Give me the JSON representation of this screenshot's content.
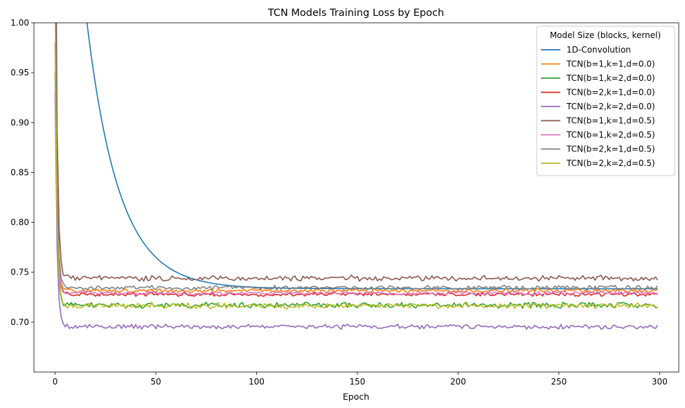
{
  "chart_data": {
    "type": "line",
    "title": "TCN Models Training Loss by Epoch",
    "xlabel": "Epoch",
    "ylabel": "",
    "xlim": [
      -10.5,
      309.5
    ],
    "ylim": [
      0.65,
      1.0
    ],
    "xticks": [
      0,
      50,
      100,
      150,
      200,
      250,
      300
    ],
    "yticks": [
      0.7,
      0.75,
      0.8,
      0.85,
      0.9,
      0.95,
      1.0
    ],
    "grid": false,
    "legend": {
      "title": "Model Size (blocks, kernel)",
      "placement": "top-right"
    },
    "epochs": 300,
    "series": [
      {
        "name": "1D-Convolution",
        "color": "#1f77b4",
        "start": 1.45,
        "plateau": 0.7335,
        "noise": 0.0,
        "decay": 16
      },
      {
        "name": "TCN(b=1,k=1,d=0.0)",
        "color": "#ff7f0e",
        "start": 0.95,
        "plateau": 0.7315,
        "noise": 0.0016,
        "decay": 0.9
      },
      {
        "name": "TCN(b=1,k=2,d=0.0)",
        "color": "#2ca02c",
        "start": 0.95,
        "plateau": 0.717,
        "noise": 0.0022,
        "decay": 0.9
      },
      {
        "name": "TCN(b=2,k=1,d=0.0)",
        "color": "#d62728",
        "start": 0.98,
        "plateau": 0.728,
        "noise": 0.0016,
        "decay": 0.9
      },
      {
        "name": "TCN(b=2,k=2,d=0.0)",
        "color": "#9467bd",
        "start": 0.93,
        "plateau": 0.6955,
        "noise": 0.0018,
        "decay": 0.9
      },
      {
        "name": "TCN(b=1,k=1,d=0.5)",
        "color": "#8c564b",
        "start": 1.2,
        "plateau": 0.744,
        "noise": 0.0022,
        "decay": 0.9
      },
      {
        "name": "TCN(b=1,k=2,d=0.5)",
        "color": "#e377c2",
        "start": 0.98,
        "plateau": 0.729,
        "noise": 0.0016,
        "decay": 0.9
      },
      {
        "name": "TCN(b=2,k=1,d=0.5)",
        "color": "#7f7f7f",
        "start": 1.05,
        "plateau": 0.7345,
        "noise": 0.0018,
        "decay": 0.9
      },
      {
        "name": "TCN(b=2,k=2,d=0.5)",
        "color": "#bcbd22",
        "start": 0.98,
        "plateau": 0.7165,
        "noise": 0.0022,
        "decay": 0.9
      }
    ]
  }
}
